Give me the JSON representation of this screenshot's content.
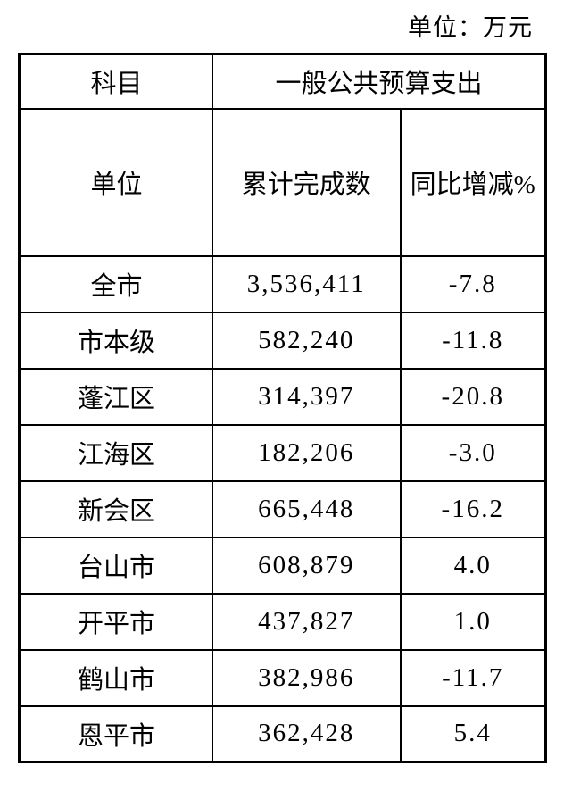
{
  "unit_note": "单位：万元",
  "table": {
    "header_row1": {
      "subject": "科目",
      "category": "一般公共预算支出"
    },
    "header_row2": {
      "unit": "单位",
      "cumulative": "累计完成数",
      "yoy": "同比增减%"
    },
    "rows": [
      {
        "name": "全市",
        "cumulative": "3,536,411",
        "yoy": "-7.8"
      },
      {
        "name": "市本级",
        "cumulative": "582,240",
        "yoy": "-11.8"
      },
      {
        "name": "蓬江区",
        "cumulative": "314,397",
        "yoy": "-20.8"
      },
      {
        "name": "江海区",
        "cumulative": "182,206",
        "yoy": "-3.0"
      },
      {
        "name": "新会区",
        "cumulative": "665,448",
        "yoy": "-16.2"
      },
      {
        "name": "台山市",
        "cumulative": "608,879",
        "yoy": "4.0"
      },
      {
        "name": "开平市",
        "cumulative": "437,827",
        "yoy": "1.0"
      },
      {
        "name": "鹤山市",
        "cumulative": "382,986",
        "yoy": "-11.7"
      },
      {
        "name": "恩平市",
        "cumulative": "362,428",
        "yoy": "5.4"
      }
    ]
  }
}
